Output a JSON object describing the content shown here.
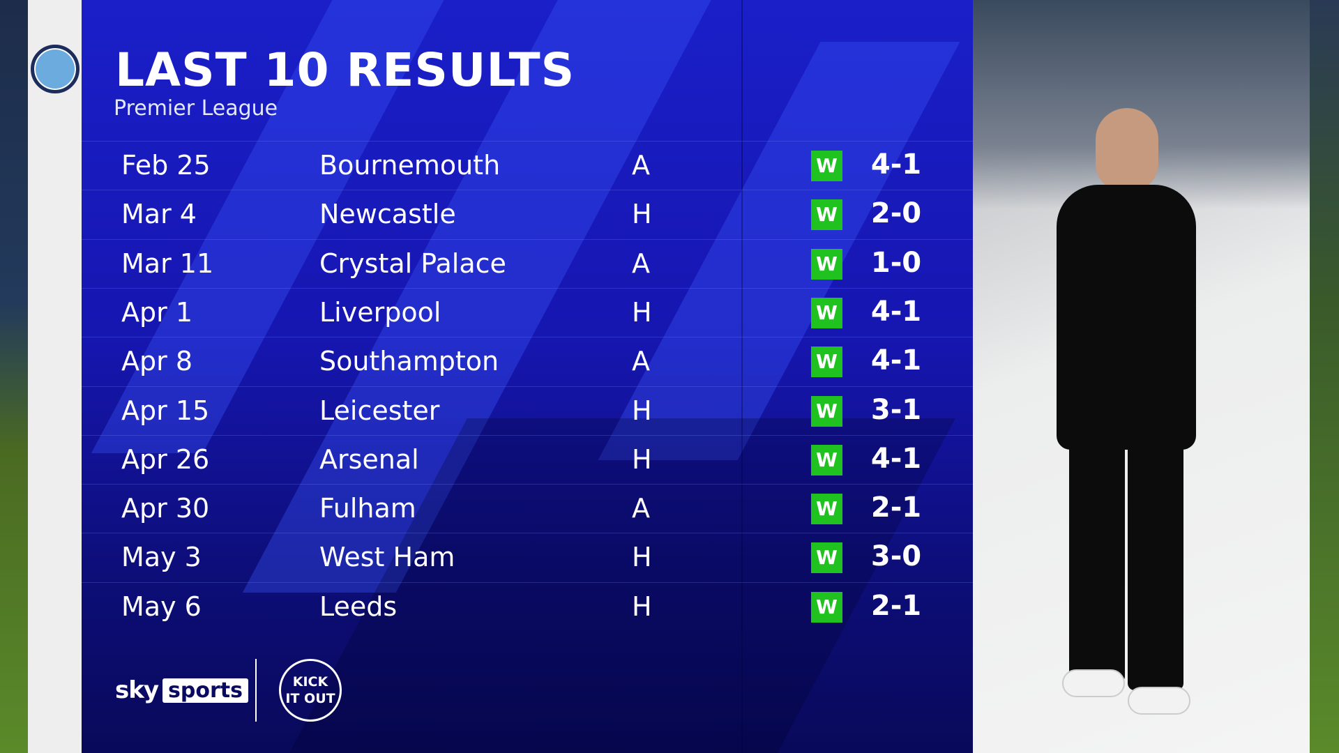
{
  "header": {
    "title": "LAST 10 RESULTS",
    "subtitle": "Premier League"
  },
  "colors": {
    "panel": "#1616b0",
    "win": "#1fc21f"
  },
  "results": [
    {
      "date": "Feb 25",
      "opponent": "Bournemouth",
      "venue": "A",
      "result": "W",
      "score": "4-1",
      "crest_color": "#d71920"
    },
    {
      "date": "Mar 4",
      "opponent": "Newcastle",
      "venue": "H",
      "result": "W",
      "score": "2-0",
      "crest_color": "#241f20"
    },
    {
      "date": "Mar 11",
      "opponent": "Crystal Palace",
      "venue": "A",
      "result": "W",
      "score": "1-0",
      "crest_color": "#1b458f"
    },
    {
      "date": "Apr 1",
      "opponent": "Liverpool",
      "venue": "H",
      "result": "W",
      "score": "4-1",
      "crest_color": "#c8102e"
    },
    {
      "date": "Apr 8",
      "opponent": "Southampton",
      "venue": "A",
      "result": "W",
      "score": "4-1",
      "crest_color": "#d71920"
    },
    {
      "date": "Apr 15",
      "opponent": "Leicester",
      "venue": "H",
      "result": "W",
      "score": "3-1",
      "crest_color": "#003090"
    },
    {
      "date": "Apr 26",
      "opponent": "Arsenal",
      "venue": "H",
      "result": "W",
      "score": "4-1",
      "crest_color": "#ef0107"
    },
    {
      "date": "Apr 30",
      "opponent": "Fulham",
      "venue": "A",
      "result": "W",
      "score": "2-1",
      "crest_color": "#222222"
    },
    {
      "date": "May 3",
      "opponent": "West Ham",
      "venue": "H",
      "result": "W",
      "score": "3-0",
      "crest_color": "#7a263a"
    },
    {
      "date": "May 6",
      "opponent": "Leeds",
      "venue": "H",
      "result": "W",
      "score": "2-1",
      "crest_color": "#1d428a"
    }
  ],
  "branding": {
    "sky": "sky",
    "sports": "sports",
    "kick_it_out": "KICK IT OUT"
  }
}
